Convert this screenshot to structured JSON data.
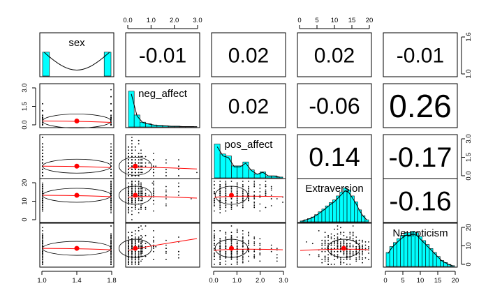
{
  "chart_data": {
    "type": "scatter",
    "variables": [
      "sex",
      "neg_affect",
      "pos_affect",
      "Extraversion",
      "Neuroticism"
    ],
    "correlations": [
      {
        "row": 0,
        "col": 1,
        "value": "-0.01"
      },
      {
        "row": 0,
        "col": 2,
        "value": "0.02"
      },
      {
        "row": 0,
        "col": 3,
        "value": "0.02"
      },
      {
        "row": 0,
        "col": 4,
        "value": "-0.01"
      },
      {
        "row": 1,
        "col": 2,
        "value": "0.02"
      },
      {
        "row": 1,
        "col": 3,
        "value": "-0.06"
      },
      {
        "row": 1,
        "col": 4,
        "value": "0.26"
      },
      {
        "row": 2,
        "col": 3,
        "value": "0.14"
      },
      {
        "row": 2,
        "col": 4,
        "value": "-0.17"
      },
      {
        "row": 3,
        "col": 4,
        "value": "-0.16"
      }
    ],
    "ranges": {
      "sex": [
        1.0,
        2.0
      ],
      "neg_affect": [
        0,
        3.0
      ],
      "pos_affect": [
        0,
        3.0
      ],
      "Extraversion": [
        0,
        22
      ],
      "Neuroticism": [
        0,
        24
      ]
    },
    "means": {
      "sex": 1.5,
      "neg_affect": 0.3,
      "pos_affect": 0.75,
      "Extraversion": 14,
      "Neuroticism": 10
    },
    "histograms": {
      "sex": [
        0.6,
        0,
        0,
        0,
        0,
        0,
        0,
        0,
        0,
        0.6
      ],
      "neg_affect": [
        0.9,
        0.3,
        0.12,
        0.08,
        0.05,
        0.04,
        0.03,
        0.02,
        0.02,
        0.01,
        0.01,
        0.01
      ],
      "pos_affect": [
        0.85,
        0.6,
        0.55,
        0.3,
        0.3,
        0.4,
        0.2,
        0.1,
        0.15,
        0.05,
        0.05,
        0.02
      ],
      "Extraversion": [
        0.02,
        0.05,
        0.08,
        0.12,
        0.18,
        0.25,
        0.32,
        0.4,
        0.48,
        0.55,
        0.65,
        0.75,
        0.85,
        0.8,
        0.65,
        0.5,
        0.3,
        0.15,
        0.05
      ],
      "Neuroticism": [
        0.35,
        0.5,
        0.6,
        0.7,
        0.78,
        0.85,
        0.85,
        0.88,
        0.85,
        0.75,
        0.65,
        0.55,
        0.45,
        0.35,
        0.25,
        0.15,
        0.1,
        0.05,
        0.02
      ]
    },
    "top_axes": [
      {
        "col": 1,
        "ticks": [
          "0.0",
          "1.0",
          "2.0",
          "3.0"
        ]
      },
      {
        "col": 3,
        "ticks": [
          "0",
          "5",
          "10",
          "15",
          "20"
        ]
      }
    ],
    "bottom_axes": [
      {
        "col": 0,
        "ticks": [
          "1.0",
          "1.4",
          "1.8"
        ]
      },
      {
        "col": 2,
        "ticks": [
          "0.0",
          "1.0",
          "2.0",
          "3.0"
        ]
      },
      {
        "col": 4,
        "ticks": [
          "0",
          "5",
          "10",
          "15",
          "20"
        ]
      }
    ],
    "left_axes": [
      {
        "row": 1,
        "ticks": [
          "0.0",
          "1.5",
          "3.0"
        ]
      },
      {
        "row": 3,
        "ticks": [
          "0",
          "10",
          "20"
        ]
      }
    ],
    "right_axes": [
      {
        "row": 0,
        "ticks": [
          "1.0",
          "1.6"
        ]
      },
      {
        "row": 2,
        "ticks": [
          "0.0",
          "1.5",
          "3.0"
        ]
      },
      {
        "row": 4,
        "ticks": [
          "0",
          "10",
          "20"
        ]
      }
    ],
    "colors": {
      "hist_fill": "#00FFFF",
      "mean_point": "#FF0000",
      "smooth_line": "#FF0000",
      "ellipse": "#000000",
      "points": "#000000"
    },
    "grid": false
  }
}
